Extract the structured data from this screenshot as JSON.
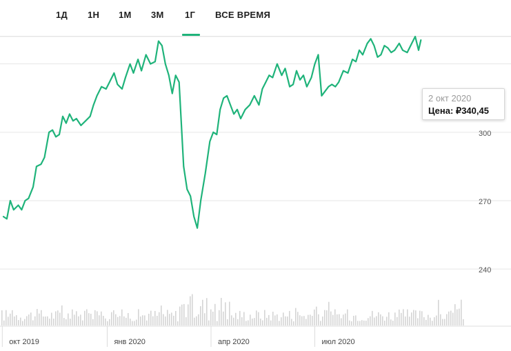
{
  "tabs": [
    {
      "label": "1Д",
      "active": false
    },
    {
      "label": "1Н",
      "active": false
    },
    {
      "label": "1М",
      "active": false
    },
    {
      "label": "3М",
      "active": false
    },
    {
      "label": "1Г",
      "active": true
    },
    {
      "label": "ВСЕ ВРЕМЯ",
      "active": false
    }
  ],
  "tooltip": {
    "date": "2 окт 2020",
    "price_label": "Цена:",
    "price_value": "₽340,45"
  },
  "colors": {
    "line": "#1fb37a",
    "tab_accent": "#1fb37a",
    "volume": "#d4d4d4",
    "grid": "#e6e6e6"
  },
  "chart_data": {
    "type": "line",
    "y_ticks": [
      240,
      270,
      300
    ],
    "ylim": [
      234,
      342
    ],
    "x_ticks": [
      {
        "label": "окт 2019",
        "x": "2019-10-01"
      },
      {
        "label": "янв 2020",
        "x": "2020-01-01"
      },
      {
        "label": "апр 2020",
        "x": "2020-04-01"
      },
      {
        "label": "июл 2020",
        "x": "2020-07-01"
      }
    ],
    "xlim": [
      "2019-09-29",
      "2020-12-20"
    ],
    "series": [
      {
        "values": [
          [
            "2019-10-02",
            263
          ],
          [
            "2019-10-05",
            262
          ],
          [
            "2019-10-08",
            270
          ],
          [
            "2019-10-11",
            266
          ],
          [
            "2019-10-15",
            268
          ],
          [
            "2019-10-18",
            266
          ],
          [
            "2019-10-21",
            270
          ],
          [
            "2019-10-24",
            271
          ],
          [
            "2019-10-28",
            276
          ],
          [
            "2019-10-31",
            285
          ],
          [
            "2019-11-04",
            286
          ],
          [
            "2019-11-07",
            289
          ],
          [
            "2019-11-11",
            300
          ],
          [
            "2019-11-14",
            301
          ],
          [
            "2019-11-17",
            298
          ],
          [
            "2019-11-20",
            299
          ],
          [
            "2019-11-23",
            307
          ],
          [
            "2019-11-26",
            304
          ],
          [
            "2019-11-29",
            308
          ],
          [
            "2019-12-02",
            305
          ],
          [
            "2019-12-05",
            306
          ],
          [
            "2019-12-09",
            303
          ],
          [
            "2019-12-13",
            305
          ],
          [
            "2019-12-17",
            307
          ],
          [
            "2019-12-20",
            312
          ],
          [
            "2019-12-23",
            316
          ],
          [
            "2019-12-27",
            320
          ],
          [
            "2019-12-31",
            319
          ],
          [
            "2020-01-03",
            322
          ],
          [
            "2020-01-07",
            326
          ],
          [
            "2020-01-10",
            321
          ],
          [
            "2020-01-14",
            319
          ],
          [
            "2020-01-17",
            324
          ],
          [
            "2020-01-21",
            330
          ],
          [
            "2020-01-24",
            326
          ],
          [
            "2020-01-28",
            332
          ],
          [
            "2020-01-31",
            327
          ],
          [
            "2020-02-04",
            334
          ],
          [
            "2020-02-08",
            330
          ],
          [
            "2020-02-12",
            331
          ],
          [
            "2020-02-15",
            340
          ],
          [
            "2020-02-18",
            338
          ],
          [
            "2020-02-21",
            330
          ],
          [
            "2020-02-24",
            325
          ],
          [
            "2020-02-27",
            317
          ],
          [
            "2020-03-01",
            325
          ],
          [
            "2020-03-04",
            322
          ],
          [
            "2020-03-08",
            285
          ],
          [
            "2020-03-11",
            275
          ],
          [
            "2020-03-14",
            272
          ],
          [
            "2020-03-17",
            263
          ],
          [
            "2020-03-20",
            258
          ],
          [
            "2020-03-23",
            270
          ],
          [
            "2020-03-27",
            282
          ],
          [
            "2020-03-31",
            296
          ],
          [
            "2020-04-03",
            300
          ],
          [
            "2020-04-06",
            299
          ],
          [
            "2020-04-09",
            310
          ],
          [
            "2020-04-12",
            315
          ],
          [
            "2020-04-15",
            316
          ],
          [
            "2020-04-18",
            312
          ],
          [
            "2020-04-21",
            308
          ],
          [
            "2020-04-24",
            310
          ],
          [
            "2020-04-27",
            306
          ],
          [
            "2020-05-01",
            310
          ],
          [
            "2020-05-05",
            312
          ],
          [
            "2020-05-09",
            316
          ],
          [
            "2020-05-13",
            312
          ],
          [
            "2020-05-16",
            319
          ],
          [
            "2020-05-19",
            322
          ],
          [
            "2020-05-22",
            325
          ],
          [
            "2020-05-25",
            324
          ],
          [
            "2020-05-29",
            330
          ],
          [
            "2020-06-02",
            325
          ],
          [
            "2020-06-05",
            328
          ],
          [
            "2020-06-09",
            320
          ],
          [
            "2020-06-12",
            321
          ],
          [
            "2020-06-15",
            327
          ],
          [
            "2020-06-18",
            323
          ],
          [
            "2020-06-21",
            325
          ],
          [
            "2020-06-24",
            320
          ],
          [
            "2020-06-28",
            324
          ],
          [
            "2020-07-01",
            330
          ],
          [
            "2020-07-04",
            334
          ],
          [
            "2020-07-07",
            316
          ],
          [
            "2020-07-10",
            318
          ],
          [
            "2020-07-13",
            320
          ],
          [
            "2020-07-16",
            321
          ],
          [
            "2020-07-19",
            320
          ],
          [
            "2020-07-22",
            322
          ],
          [
            "2020-07-26",
            327
          ],
          [
            "2020-07-30",
            326
          ],
          [
            "2020-08-03",
            332
          ],
          [
            "2020-08-06",
            331
          ],
          [
            "2020-08-09",
            336
          ],
          [
            "2020-08-12",
            334
          ],
          [
            "2020-08-16",
            339
          ],
          [
            "2020-08-19",
            341
          ],
          [
            "2020-08-22",
            338
          ],
          [
            "2020-08-25",
            333
          ],
          [
            "2020-08-28",
            334
          ],
          [
            "2020-08-31",
            338
          ],
          [
            "2020-09-03",
            337
          ],
          [
            "2020-09-06",
            335
          ],
          [
            "2020-09-09",
            336
          ],
          [
            "2020-09-13",
            339
          ],
          [
            "2020-09-16",
            336
          ],
          [
            "2020-09-20",
            335
          ],
          [
            "2020-09-24",
            339
          ],
          [
            "2020-09-27",
            342
          ],
          [
            "2020-09-30",
            336
          ],
          [
            "2020-10-02",
            340.45
          ]
        ]
      }
    ]
  }
}
